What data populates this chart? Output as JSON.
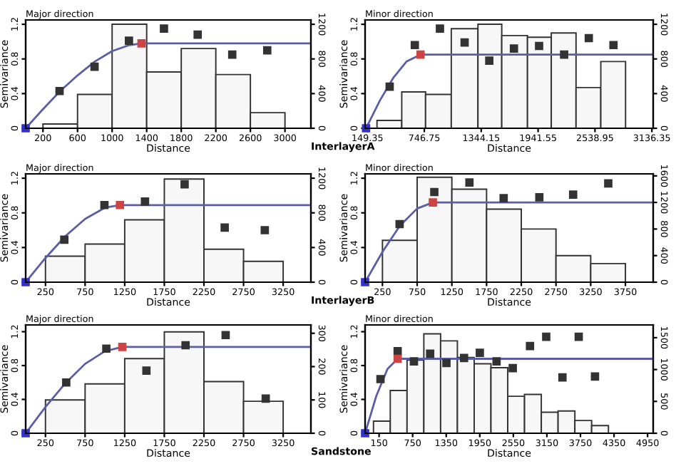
{
  "chart_data": [
    {
      "type": "histogram",
      "title": "Major direction",
      "xlabel": "Distance",
      "ylabel": "Semivariance",
      "annotations": [
        "InterlayerA"
      ],
      "xlim": [
        0,
        3300
      ],
      "xticks": [
        200,
        600,
        1000,
        1400,
        1800,
        2200,
        2600,
        3000
      ],
      "ylim": [
        0,
        1.25
      ],
      "yticks": [
        0,
        0.4,
        0.8,
        1.2
      ],
      "y2lim": [
        0,
        1250
      ],
      "y2ticks": [
        0,
        400,
        800,
        1200
      ],
      "series": [
        {
          "type": "histogram",
          "axis": "y2",
          "color": "#f7f7f7",
          "bins": [
            200,
            600,
            1000,
            1400,
            1800,
            2200,
            2600,
            3000
          ],
          "values": [
            50,
            390,
            1200,
            650,
            920,
            620,
            180
          ]
        },
        {
          "type": "line",
          "color": "#5b5ea6",
          "x": [
            0,
            200,
            400,
            600,
            800,
            1000,
            1200,
            1340,
            3300
          ],
          "values": [
            0,
            0.22,
            0.43,
            0.61,
            0.77,
            0.89,
            0.96,
            0.98,
            0.98
          ]
        },
        {
          "type": "scatter",
          "marker": "square",
          "color": "#333333",
          "x": [
            392,
            797,
            1195,
            1600,
            1990,
            2390,
            2795
          ],
          "values": [
            0.43,
            0.71,
            1.01,
            1.15,
            1.08,
            0.85,
            0.9
          ]
        },
        {
          "type": "scatter",
          "marker": "square",
          "color": "#3333cc",
          "x": [
            0
          ],
          "values": [
            0
          ]
        },
        {
          "type": "scatter",
          "marker": "square",
          "color": "#cc4444",
          "x": [
            1340
          ],
          "values": [
            0.98
          ]
        }
      ]
    },
    {
      "type": "histogram",
      "title": "Minor direction",
      "xlabel": "Distance",
      "ylabel": "Semivariance",
      "xlim": [
        125,
        3150
      ],
      "xticks": [
        149.35,
        746.75,
        1344.15,
        1941.55,
        2538.95,
        3136.35
      ],
      "ylim": [
        0,
        1.25
      ],
      "yticks": [
        0,
        0.4,
        0.8,
        1.2
      ],
      "y2lim": [
        0,
        1250
      ],
      "y2ticks": [
        0,
        400,
        800,
        1200
      ],
      "series": [
        {
          "type": "histogram",
          "axis": "y2",
          "color": "#f7f7f7",
          "bins": [
            250,
            510,
            760,
            1030,
            1310,
            1560,
            1830,
            2080,
            2340,
            2600,
            2860
          ],
          "values": [
            90,
            420,
            390,
            1150,
            1200,
            1070,
            1050,
            1100,
            470,
            770
          ]
        },
        {
          "type": "line",
          "color": "#5b5ea6",
          "x": [
            135,
            280,
            420,
            560,
            707,
            3150
          ],
          "values": [
            0,
            0.32,
            0.58,
            0.77,
            0.85,
            0.85
          ]
        },
        {
          "type": "scatter",
          "marker": "square",
          "color": "#333333",
          "x": [
            383,
            647,
            911,
            1170,
            1429,
            1688,
            1952,
            2215,
            2474,
            2733
          ],
          "values": [
            0.48,
            0.96,
            1.15,
            0.99,
            0.78,
            0.92,
            0.95,
            0.85,
            1.04,
            0.96
          ]
        },
        {
          "type": "scatter",
          "marker": "square",
          "color": "#3333cc",
          "x": [
            135
          ],
          "values": [
            0
          ]
        },
        {
          "type": "scatter",
          "marker": "square",
          "color": "#cc4444",
          "x": [
            707
          ],
          "values": [
            0.85
          ]
        }
      ]
    },
    {
      "type": "histogram",
      "title": "Major direction",
      "xlabel": "Distance",
      "ylabel": "Semivariance",
      "annotations": [
        "InterlayerB"
      ],
      "xlim": [
        0,
        3600
      ],
      "xticks": [
        250,
        750,
        1250,
        1750,
        2250,
        2750,
        3250
      ],
      "ylim": [
        0,
        1.25
      ],
      "yticks": [
        0,
        0.4,
        0.8,
        1.2
      ],
      "y2lim": [
        0,
        1250
      ],
      "y2ticks": [
        0,
        400,
        800,
        1200
      ],
      "series": [
        {
          "type": "histogram",
          "axis": "y2",
          "color": "#f7f7f7",
          "bins": [
            250,
            750,
            1250,
            1750,
            2250,
            2750,
            3250
          ],
          "values": [
            300,
            440,
            720,
            1190,
            380,
            240
          ]
        },
        {
          "type": "line",
          "color": "#5b5ea6",
          "x": [
            0,
            250,
            500,
            750,
            1000,
            1190,
            3600
          ],
          "values": [
            0,
            0.28,
            0.53,
            0.73,
            0.86,
            0.89,
            0.89
          ]
        },
        {
          "type": "scatter",
          "marker": "square",
          "color": "#333333",
          "x": [
            488,
            994,
            1506,
            2006,
            2512,
            3018
          ],
          "values": [
            0.49,
            0.89,
            0.93,
            1.13,
            0.63,
            0.6
          ]
        },
        {
          "type": "scatter",
          "marker": "square",
          "color": "#3333cc",
          "x": [
            0
          ],
          "values": [
            0
          ]
        },
        {
          "type": "scatter",
          "marker": "square",
          "color": "#cc4444",
          "x": [
            1190
          ],
          "values": [
            0.89
          ]
        }
      ]
    },
    {
      "type": "histogram",
      "title": "Minor direction",
      "xlabel": "Distance",
      "ylabel": "Semivariance",
      "xlim": [
        0,
        4150
      ],
      "xticks": [
        250,
        750,
        1250,
        1750,
        2250,
        2750,
        3250,
        3750
      ],
      "ylim": [
        0,
        1.25
      ],
      "yticks": [
        0,
        0.4,
        0.8,
        1.2
      ],
      "y2lim": [
        0,
        1630
      ],
      "y2ticks": [
        0,
        400,
        800,
        1200,
        1600
      ],
      "series": [
        {
          "type": "histogram",
          "axis": "y2",
          "color": "#f7f7f7",
          "bins": [
            250,
            750,
            1250,
            1750,
            2250,
            2750,
            3250,
            3750
          ],
          "values": [
            630,
            1580,
            1400,
            1100,
            800,
            400,
            280
          ]
        },
        {
          "type": "line",
          "color": "#5b5ea6",
          "x": [
            0,
            250,
            500,
            750,
            976,
            4150
          ],
          "values": [
            0,
            0.35,
            0.65,
            0.85,
            0.92,
            0.92
          ]
        },
        {
          "type": "scatter",
          "marker": "square",
          "color": "#333333",
          "x": [
            497,
            997,
            1503,
            1996,
            2510,
            2997,
            3503
          ],
          "values": [
            0.67,
            1.04,
            1.15,
            0.97,
            0.98,
            1.01,
            1.14
          ]
        },
        {
          "type": "scatter",
          "marker": "square",
          "color": "#3333cc",
          "x": [
            0
          ],
          "values": [
            0
          ]
        },
        {
          "type": "scatter",
          "marker": "square",
          "color": "#cc4444",
          "x": [
            976
          ],
          "values": [
            0.92
          ]
        }
      ]
    },
    {
      "type": "histogram",
      "title": "Major direction",
      "xlabel": "Distance",
      "ylabel": "Semivariance",
      "annotations": [
        "Sandstone"
      ],
      "xlim": [
        0,
        3600
      ],
      "xticks": [
        250,
        750,
        1250,
        1750,
        2250,
        2750,
        3250
      ],
      "ylim": [
        0,
        1.28
      ],
      "yticks": [
        0,
        0.4,
        0.8,
        1.2
      ],
      "y2lim": [
        0,
        325
      ],
      "y2ticks": [
        0,
        100,
        200,
        300
      ],
      "series": [
        {
          "type": "histogram",
          "axis": "y2",
          "color": "#f7f7f7",
          "bins": [
            250,
            750,
            1250,
            1750,
            2250,
            2750,
            3250
          ],
          "values": [
            100,
            148,
            224,
            304,
            155,
            96
          ]
        },
        {
          "type": "line",
          "color": "#5b5ea6",
          "x": [
            0,
            250,
            500,
            750,
            1000,
            1220,
            3600
          ],
          "values": [
            0,
            0.31,
            0.59,
            0.82,
            0.97,
            1.02,
            1.02
          ]
        },
        {
          "type": "scatter",
          "marker": "square",
          "color": "#333333",
          "x": [
            512,
            1018,
            1524,
            2018,
            2524,
            3030
          ],
          "values": [
            0.6,
            1.0,
            0.74,
            1.04,
            1.16,
            0.41
          ]
        },
        {
          "type": "scatter",
          "marker": "square",
          "color": "#3333cc",
          "x": [
            0
          ],
          "values": [
            0
          ]
        },
        {
          "type": "scatter",
          "marker": "square",
          "color": "#cc4444",
          "x": [
            1220
          ],
          "values": [
            1.02
          ]
        }
      ]
    },
    {
      "type": "histogram",
      "title": "Minor direction",
      "xlabel": "Distance",
      "ylabel": "Semivariance",
      "xlim": [
        -100,
        5050
      ],
      "xticks": [
        150,
        750,
        1350,
        1950,
        2550,
        3150,
        3750,
        4350,
        4950
      ],
      "ylim": [
        0,
        1.28
      ],
      "yticks": [
        0,
        0.4,
        0.8,
        1.2
      ],
      "y2lim": [
        0,
        1700
      ],
      "y2ticks": [
        0,
        500,
        1000,
        1500
      ],
      "series": [
        {
          "type": "histogram",
          "axis": "y2",
          "color": "#f7f7f7",
          "bins": [
            50,
            350,
            650,
            950,
            1250,
            1550,
            1850,
            2150,
            2450,
            2750,
            3050,
            3350,
            3650,
            3950,
            4250
          ],
          "values": [
            190,
            670,
            1150,
            1560,
            1450,
            1190,
            1090,
            1030,
            580,
            610,
            330,
            350,
            200,
            120
          ]
        },
        {
          "type": "line",
          "color": "#5b5ea6",
          "x": [
            -100,
            100,
            300,
            482,
            5050
          ],
          "values": [
            0,
            0.44,
            0.76,
            0.88,
            0.88
          ]
        },
        {
          "type": "scatter",
          "marker": "square",
          "color": "#333333",
          "x": [
            175,
            482,
            773,
            1063,
            1354,
            1669,
            1951,
            2250,
            2540,
            2848,
            3138,
            3428,
            3719,
            4010
          ],
          "values": [
            0.64,
            0.97,
            0.85,
            0.94,
            0.83,
            0.89,
            0.95,
            0.85,
            0.77,
            1.03,
            1.14,
            0.66,
            1.14,
            0.67
          ]
        },
        {
          "type": "scatter",
          "marker": "square",
          "color": "#3333cc",
          "x": [
            -100
          ],
          "values": [
            0
          ]
        },
        {
          "type": "scatter",
          "marker": "square",
          "color": "#cc4444",
          "x": [
            482
          ],
          "values": [
            0.88
          ]
        }
      ]
    }
  ]
}
